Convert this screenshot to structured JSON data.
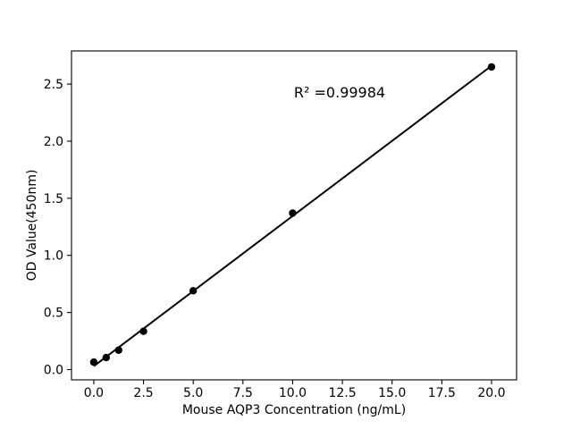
{
  "chart_data": {
    "type": "scatter",
    "title": "",
    "xlabel": "Mouse AQP3 Concentration (ng/mL)",
    "ylabel": "OD Value(450nm)",
    "annotation": "R² =0.99984",
    "x": [
      0,
      0.625,
      1.25,
      2.5,
      5,
      10,
      20
    ],
    "y": [
      0.065,
      0.105,
      0.17,
      0.335,
      0.69,
      1.37,
      2.65
    ],
    "fit_line": {
      "x": [
        0,
        20
      ],
      "y": [
        0.03,
        2.66
      ]
    },
    "xlim": [
      -1.12,
      21.26
    ],
    "ylim": [
      -0.09,
      2.79
    ],
    "xticks": [
      0,
      2.5,
      5,
      7.5,
      10,
      12.5,
      15,
      17.5,
      20
    ],
    "xtick_labels": [
      "0.0",
      "2.5",
      "5.0",
      "7.5",
      "10.0",
      "12.5",
      "15.0",
      "17.5",
      "20.0"
    ],
    "yticks": [
      0,
      0.5,
      1,
      1.5,
      2,
      2.5
    ],
    "ytick_labels": [
      "0.0",
      "0.5",
      "1.0",
      "1.5",
      "2.0",
      "2.5"
    ],
    "grid": false,
    "legend": null,
    "colors": {
      "marker": "#000000",
      "line": "#000000",
      "axis": "#000000",
      "text": "#000000",
      "background": "#ffffff"
    }
  }
}
